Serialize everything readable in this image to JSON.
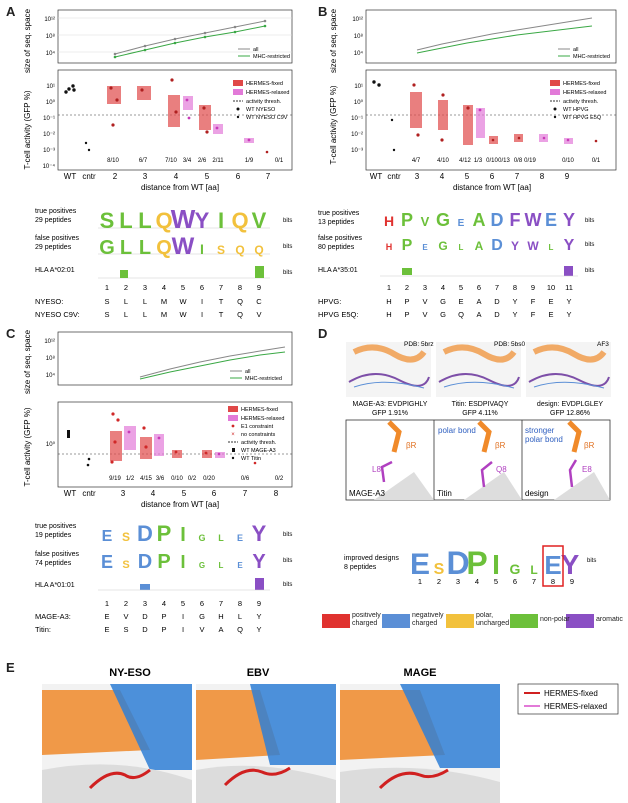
{
  "panels": {
    "A": "A",
    "B": "B",
    "C": "C",
    "D": "D",
    "E": "E"
  },
  "common": {
    "size_ylabel": "size of seq. space",
    "act_ylabel": "T-cell activity (GFP %)",
    "xlabel": "distance from WT [aa]",
    "wt": "WT",
    "cntr": "cntr",
    "leg_all": "all",
    "leg_mhc": "MHC-restricted",
    "leg_fixed": "HERMES-fixed",
    "leg_relaxed": "HERMES-relaxed",
    "leg_thresh": "activity thresh.",
    "bits": "bits",
    "ticks_size": [
      "10¹²",
      "10⁸",
      "10⁴"
    ],
    "ticks_act": [
      "10¹",
      "10⁰",
      "10⁻¹",
      "10⁻²",
      "10⁻³",
      "10⁻⁴"
    ]
  },
  "panelA": {
    "dist": [
      "2",
      "3",
      "4",
      "5",
      "6",
      "7"
    ],
    "legend_wt": "WT NYESO",
    "legend_var": "WT NYESO C9V",
    "fractions": [
      "8/10",
      "6/7",
      "7/10",
      "3/4",
      "2/6",
      "2/11",
      "1/9",
      "0/1"
    ],
    "true_pos": "true positives",
    "true_pos_n": "29 peptides",
    "false_pos": "false positives",
    "false_pos_n": "29 peptides",
    "hla": "HLA A*02:01",
    "positions": [
      "1",
      "2",
      "3",
      "4",
      "5",
      "6",
      "7",
      "8",
      "9"
    ],
    "seq1_name": "NYESO:",
    "seq1": [
      "S",
      "L",
      "L",
      "M",
      "W",
      "I",
      "T",
      "Q",
      "C"
    ],
    "seq2_name": "NYESO C9V:",
    "seq2": [
      "S",
      "L",
      "L",
      "M",
      "W",
      "I",
      "T",
      "Q",
      "V"
    ],
    "logo_tp": [
      "S",
      "L",
      "L",
      "Q",
      "W",
      "Y",
      "I",
      "Q",
      "V"
    ],
    "logo_fp": [
      "G",
      "L",
      "L",
      "Q",
      "W",
      "I",
      "S",
      "Q",
      "Q"
    ]
  },
  "panelB": {
    "dist": [
      "3",
      "4",
      "5",
      "6",
      "7",
      "8",
      "9"
    ],
    "legend_wt": "WT HPVG",
    "legend_var": "WT HPVG E5Q",
    "fractions": [
      "4/7",
      "4/10",
      "4/12",
      "1/3",
      "0/10",
      "0/13",
      "0/8",
      "0/19",
      "0/10",
      "0/1"
    ],
    "true_pos": "true positives",
    "true_pos_n": "13 peptides",
    "false_pos": "false positives",
    "false_pos_n": "80 peptides",
    "hla": "HLA A*35:01",
    "positions": [
      "1",
      "2",
      "3",
      "4",
      "5",
      "6",
      "7",
      "8",
      "9",
      "10",
      "11"
    ],
    "seq1_name": "HPVG:",
    "seq1": [
      "H",
      "P",
      "V",
      "G",
      "E",
      "A",
      "D",
      "Y",
      "F",
      "E",
      "Y"
    ],
    "seq2_name": "HPVG E5Q:",
    "seq2": [
      "H",
      "P",
      "V",
      "G",
      "Q",
      "A",
      "D",
      "Y",
      "F",
      "E",
      "Y"
    ],
    "logo_tp": [
      "H",
      "P",
      "V",
      "G",
      "E",
      "A",
      "D",
      "F",
      "W",
      "E",
      "Y"
    ],
    "logo_fp": [
      "H",
      "P",
      "E",
      "G",
      "L",
      "A",
      "D",
      "Y",
      "W",
      "L",
      "Y"
    ]
  },
  "panelC": {
    "dist": [
      "3",
      "4",
      "5",
      "6",
      "7",
      "8"
    ],
    "legend_e1": "E1 constraint",
    "legend_none": "no constraints",
    "legend_wt": "WT MAGE-A3",
    "legend_var": "WT Titin",
    "fractions": [
      "9/19",
      "1/2",
      "4/15",
      "3/6",
      "0/10",
      "0/2",
      "0/20",
      "0/6",
      "0/2"
    ],
    "true_pos": "true positives",
    "true_pos_n": "19 peptides",
    "false_pos": "false positives",
    "false_pos_n": "74 peptides",
    "hla": "HLA A*01:01",
    "positions": [
      "1",
      "2",
      "3",
      "4",
      "5",
      "6",
      "7",
      "8",
      "9"
    ],
    "seq1_name": "MAGE-A3:",
    "seq1": [
      "E",
      "V",
      "D",
      "P",
      "I",
      "G",
      "H",
      "L",
      "Y"
    ],
    "seq2_name": "Titin:",
    "seq2": [
      "E",
      "S",
      "D",
      "P",
      "I",
      "V",
      "A",
      "Q",
      "Y"
    ],
    "logo_tp": [
      "E",
      "S",
      "D",
      "P",
      "I",
      "G",
      "L",
      "E",
      "Y"
    ],
    "logo_fp": [
      "E",
      "S",
      "D",
      "P",
      "I",
      "G",
      "L",
      "E",
      "Y"
    ]
  },
  "panelD": {
    "pdb1": "PDB: 5brz",
    "pdb2": "PDB: 5bs0",
    "pdb3": "AF3",
    "cap1a": "MAGE-A3: EVDPIGHLY",
    "cap1b": "GFP 1.91%",
    "cap2a": "Titin: ESDPIVAQY",
    "cap2b": "GFP 4.11%",
    "cap3a": "design: EVDPLGLEY",
    "cap3b": "GFP 12.86%",
    "zoom1": "MAGE-A3",
    "zoom2": "Titin",
    "zoom3": "design",
    "res1": "L8",
    "res2": "Q8",
    "res3": "E8",
    "br": "βR",
    "polar": "polar bond",
    "stronger": "stronger polar bond",
    "improved": "improved designs",
    "improved_n": "8 peptides",
    "logo": [
      "E",
      "S",
      "D",
      "P",
      "I",
      "G",
      "L",
      "E",
      "Y"
    ],
    "positions": [
      "1",
      "2",
      "3",
      "4",
      "5",
      "6",
      "7",
      "8",
      "9"
    ],
    "cat_pos": "positively charged",
    "cat_neg": "negatively charged",
    "cat_polar": "polar, uncharged",
    "cat_nonpolar": "non-polar",
    "cat_arom": "aromatic"
  },
  "panelE": {
    "t1": "NY-ESO",
    "t2": "EBV",
    "t3": "MAGE",
    "leg_fixed": "HERMES-fixed",
    "leg_relaxed": "HERMES-relaxed"
  },
  "colors": {
    "fixed": "#e04848",
    "relaxed": "#e27ad8",
    "all": "#888888",
    "mhc": "#3aa845",
    "pos": "#e0322f",
    "neg": "#5b8fd6",
    "polar": "#f2c13c",
    "nonpolar": "#6cc03a",
    "arom": "#8a4fc4"
  }
}
